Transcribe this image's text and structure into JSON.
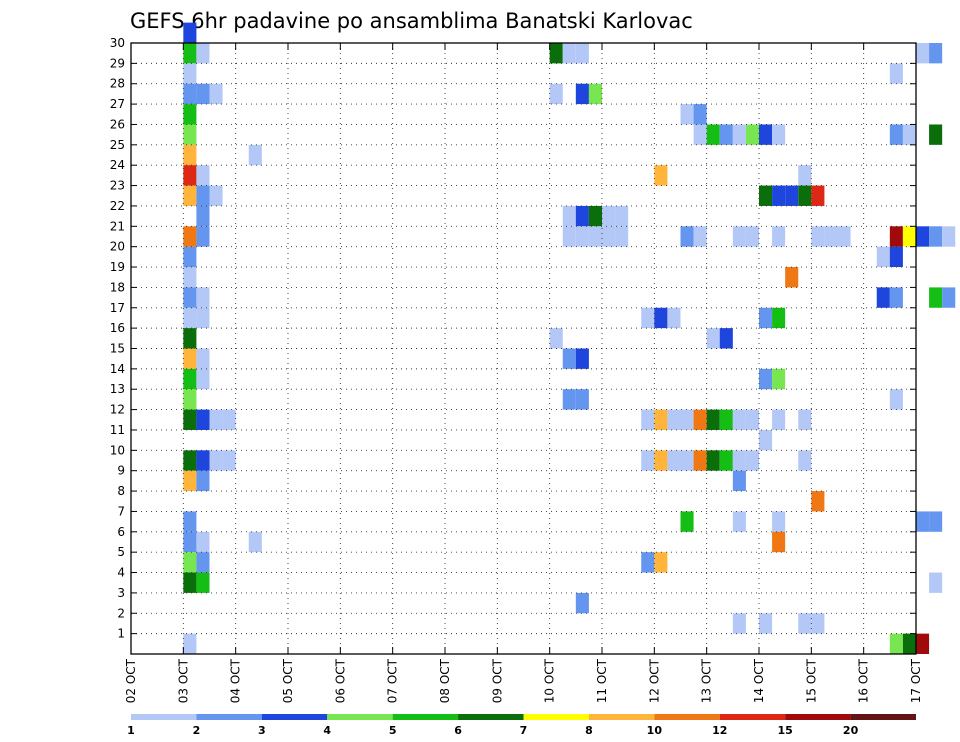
{
  "chart_data": {
    "type": "heatmap",
    "title": "GEFS 6hr padavine po ansamblima Banatski Karlovac",
    "x_tick_labels": [
      "02 OCT",
      "03 OCT",
      "04 OCT",
      "05 OCT",
      "06 OCT",
      "07 OCT",
      "08 OCT",
      "09 OCT",
      "10 OCT",
      "11 OCT",
      "12 OCT",
      "13 OCT",
      "14 OCT",
      "15 OCT",
      "16 OCT",
      "17 OCT"
    ],
    "x_range_days": [
      0,
      15
    ],
    "time_step_hours": 6,
    "y_tick_labels": [
      "1",
      "2",
      "3",
      "4",
      "5",
      "6",
      "7",
      "8",
      "9",
      "10",
      "11",
      "12",
      "13",
      "14",
      "15",
      "16",
      "17",
      "18",
      "19",
      "20",
      "21",
      "22",
      "23",
      "24",
      "25",
      "26",
      "27",
      "28",
      "29",
      "30"
    ],
    "y_range": [
      0,
      30
    ],
    "grid": true,
    "colorbar": {
      "position": "bottom",
      "labels": [
        "1",
        "2",
        "3",
        "4",
        "5",
        "6",
        "7",
        "8",
        "10",
        "12",
        "15",
        "20"
      ],
      "thresholds": [
        1,
        2,
        3,
        4,
        5,
        6,
        7,
        8,
        10,
        12,
        15,
        20
      ],
      "colors": [
        "#b4c8f8",
        "#6496f0",
        "#1e46dc",
        "#78e650",
        "#14be14",
        "#0a6e0a",
        "#ffff00",
        "#ffb43c",
        "#f07814",
        "#dc2814",
        "#a00a0a",
        "#641414"
      ]
    },
    "cells": [
      {
        "m": 30,
        "s": [
          [
            4,
            3
          ]
        ]
      },
      {
        "m": 29,
        "s": [
          [
            4,
            5
          ],
          [
            5,
            1
          ],
          [
            32,
            6
          ],
          [
            33,
            1
          ],
          [
            34,
            1
          ],
          [
            60,
            1
          ],
          [
            61,
            2
          ]
        ]
      },
      {
        "m": 28,
        "s": [
          [
            4,
            1
          ],
          [
            58,
            1
          ]
        ]
      },
      {
        "m": 27,
        "s": [
          [
            4,
            2
          ],
          [
            5,
            2
          ],
          [
            6,
            1
          ],
          [
            32,
            1
          ],
          [
            34,
            3
          ],
          [
            35,
            4
          ]
        ]
      },
      {
        "m": 26,
        "s": [
          [
            4,
            5
          ],
          [
            42,
            1
          ],
          [
            43,
            2
          ]
        ]
      },
      {
        "m": 25,
        "s": [
          [
            4,
            4
          ],
          [
            43,
            1
          ],
          [
            44,
            5
          ],
          [
            45,
            2
          ],
          [
            46,
            1
          ],
          [
            47,
            4
          ],
          [
            48,
            3
          ],
          [
            49,
            1
          ],
          [
            58,
            2
          ],
          [
            59,
            1
          ],
          [
            61,
            6
          ]
        ]
      },
      {
        "m": 24,
        "s": [
          [
            4,
            8
          ],
          [
            9,
            1
          ]
        ]
      },
      {
        "m": 23,
        "s": [
          [
            4,
            10
          ],
          [
            5,
            1
          ],
          [
            40,
            8
          ],
          [
            51,
            1
          ]
        ]
      },
      {
        "m": 22,
        "s": [
          [
            4,
            8
          ],
          [
            5,
            2
          ],
          [
            6,
            1
          ],
          [
            48,
            6
          ],
          [
            49,
            3
          ],
          [
            50,
            3
          ],
          [
            51,
            6
          ],
          [
            52,
            10
          ]
        ]
      },
      {
        "m": 21,
        "s": [
          [
            5,
            2
          ],
          [
            33,
            1
          ],
          [
            34,
            3
          ],
          [
            35,
            6
          ],
          [
            36,
            1
          ],
          [
            37,
            1
          ]
        ]
      },
      {
        "m": 20,
        "s": [
          [
            4,
            9
          ],
          [
            5,
            2
          ],
          [
            33,
            1
          ],
          [
            34,
            1
          ],
          [
            35,
            1
          ],
          [
            36,
            1
          ],
          [
            37,
            1
          ],
          [
            42,
            2
          ],
          [
            43,
            1
          ],
          [
            46,
            1
          ],
          [
            47,
            1
          ],
          [
            49,
            1
          ],
          [
            52,
            1
          ],
          [
            53,
            1
          ],
          [
            54,
            1
          ],
          [
            58,
            11
          ],
          [
            59,
            7
          ],
          [
            60,
            3
          ],
          [
            61,
            2
          ],
          [
            62,
            1
          ]
        ]
      },
      {
        "m": 19,
        "s": [
          [
            4,
            2
          ],
          [
            57,
            1
          ],
          [
            58,
            3
          ]
        ]
      },
      {
        "m": 18,
        "s": [
          [
            4,
            1
          ],
          [
            50,
            9
          ]
        ]
      },
      {
        "m": 17,
        "s": [
          [
            4,
            2
          ],
          [
            5,
            1
          ],
          [
            57,
            3
          ],
          [
            58,
            2
          ],
          [
            61,
            5
          ],
          [
            62,
            2
          ]
        ]
      },
      {
        "m": 16,
        "s": [
          [
            4,
            1
          ],
          [
            5,
            1
          ],
          [
            39,
            1
          ],
          [
            40,
            3
          ],
          [
            41,
            1
          ],
          [
            48,
            2
          ],
          [
            49,
            5
          ]
        ]
      },
      {
        "m": 15,
        "s": [
          [
            4,
            6
          ],
          [
            32,
            1
          ],
          [
            44,
            1
          ],
          [
            45,
            3
          ]
        ]
      },
      {
        "m": 14,
        "s": [
          [
            4,
            8
          ],
          [
            5,
            1
          ],
          [
            33,
            2
          ],
          [
            34,
            3
          ]
        ]
      },
      {
        "m": 13,
        "s": [
          [
            4,
            5
          ],
          [
            5,
            1
          ],
          [
            48,
            2
          ],
          [
            49,
            4
          ]
        ]
      },
      {
        "m": 12,
        "s": [
          [
            4,
            4
          ],
          [
            33,
            2
          ],
          [
            34,
            2
          ],
          [
            58,
            1
          ]
        ]
      },
      {
        "m": 11,
        "s": [
          [
            4,
            6
          ],
          [
            5,
            3
          ],
          [
            6,
            1
          ],
          [
            7,
            1
          ],
          [
            39,
            1
          ],
          [
            40,
            8
          ],
          [
            41,
            1
          ],
          [
            42,
            1
          ],
          [
            43,
            9
          ],
          [
            44,
            6
          ],
          [
            45,
            5
          ],
          [
            46,
            1
          ],
          [
            47,
            1
          ],
          [
            49,
            1
          ],
          [
            51,
            1
          ]
        ]
      },
      {
        "m": 10,
        "s": [
          [
            48,
            1
          ]
        ]
      },
      {
        "m": 9,
        "s": [
          [
            4,
            6
          ],
          [
            5,
            3
          ],
          [
            6,
            1
          ],
          [
            7,
            1
          ],
          [
            39,
            1
          ],
          [
            40,
            8
          ],
          [
            41,
            1
          ],
          [
            42,
            1
          ],
          [
            43,
            9
          ],
          [
            44,
            6
          ],
          [
            45,
            5
          ],
          [
            46,
            1
          ],
          [
            47,
            1
          ],
          [
            51,
            1
          ]
        ]
      },
      {
        "m": 8,
        "s": [
          [
            4,
            8
          ],
          [
            5,
            2
          ],
          [
            46,
            2
          ]
        ]
      },
      {
        "m": 7,
        "s": [
          [
            52,
            9
          ]
        ]
      },
      {
        "m": 6,
        "s": [
          [
            4,
            2
          ],
          [
            42,
            5
          ],
          [
            46,
            1
          ],
          [
            49,
            1
          ],
          [
            60,
            2
          ],
          [
            61,
            2
          ]
        ]
      },
      {
        "m": 5,
        "s": [
          [
            4,
            2
          ],
          [
            5,
            1
          ],
          [
            9,
            1
          ],
          [
            49,
            9
          ]
        ]
      },
      {
        "m": 4,
        "s": [
          [
            4,
            4
          ],
          [
            5,
            2
          ],
          [
            39,
            2
          ],
          [
            40,
            8
          ]
        ]
      },
      {
        "m": 3,
        "s": [
          [
            4,
            6
          ],
          [
            5,
            5
          ],
          [
            61,
            1
          ]
        ]
      },
      {
        "m": 2,
        "s": [
          [
            34,
            2
          ]
        ]
      },
      {
        "m": 1,
        "s": [
          [
            46,
            1
          ],
          [
            48,
            1
          ],
          [
            51,
            1
          ],
          [
            52,
            1
          ]
        ]
      },
      {
        "m": 0,
        "s": [
          [
            4,
            1
          ],
          [
            58,
            4
          ],
          [
            59,
            6
          ],
          [
            60,
            11
          ]
        ]
      }
    ]
  }
}
